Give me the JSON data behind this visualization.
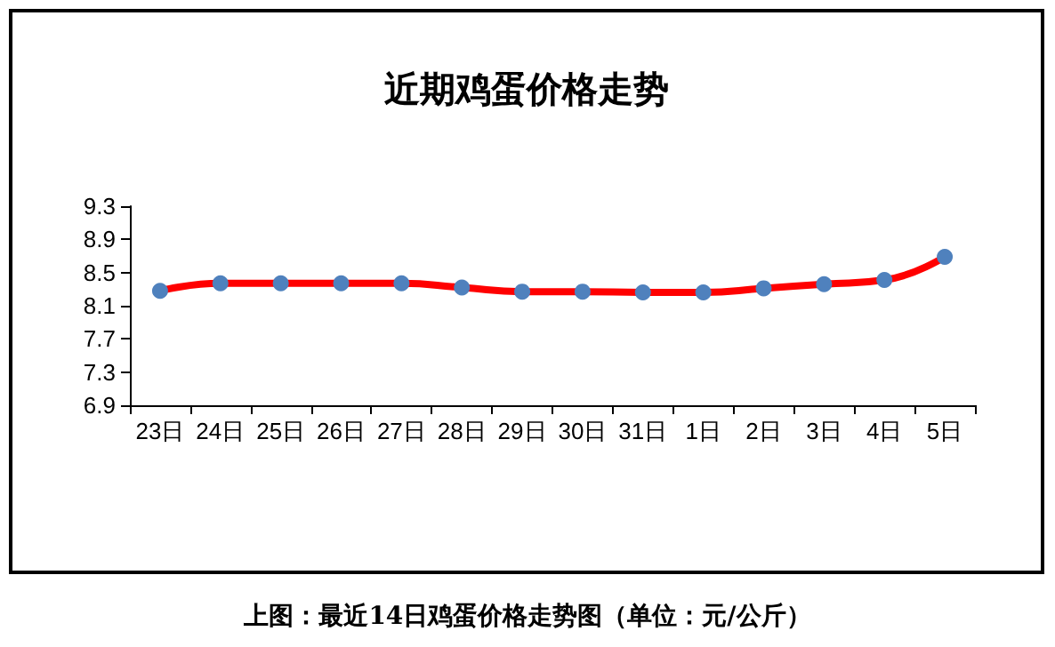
{
  "chart_data": {
    "type": "line",
    "title": "近期鸡蛋价格走势",
    "categories": [
      "23日",
      "24日",
      "25日",
      "26日",
      "27日",
      "28日",
      "29日",
      "30日",
      "31日",
      "1日",
      "2日",
      "3日",
      "4日",
      "5日"
    ],
    "series": [
      {
        "color": "#ff0000",
        "values": [
          8.28,
          8.37,
          8.37,
          8.37,
          8.37,
          8.32,
          8.27,
          8.27,
          8.26,
          8.26,
          8.31,
          8.36,
          8.41,
          8.69
        ]
      }
    ],
    "ylim": [
      6.9,
      9.3
    ],
    "yticks": [
      6.9,
      7.3,
      7.7,
      8.1,
      8.5,
      8.9,
      9.3
    ],
    "grid": false,
    "marker": "circle",
    "line_style": "solid",
    "annotations": [
      "上图：最近14日鸡蛋价格走势图（单位：元/公斤）"
    ]
  }
}
